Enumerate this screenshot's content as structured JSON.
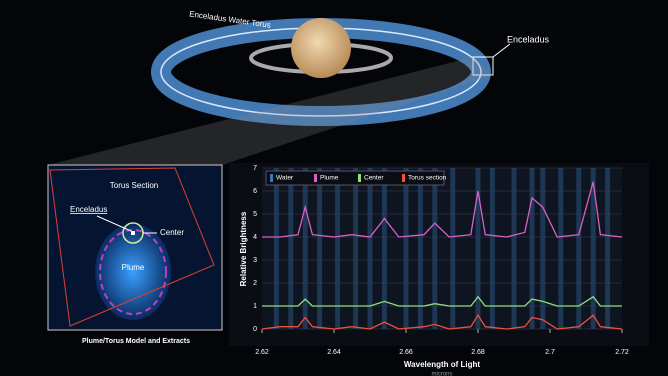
{
  "illustration": {
    "torus_label": "Enceladus Water Torus",
    "moon_label": "Enceladus"
  },
  "inset": {
    "title": "Torus Section",
    "moon_label": "Enceladus",
    "center_label": "Center",
    "plume_label": "Plume",
    "caption": "Plume/Torus Model and Extracts"
  },
  "chart_data": {
    "type": "line",
    "x_label": "Wavelength of Light",
    "x_unit": "microns",
    "y_label": "Relative Brightness",
    "x": [
      2.62,
      2.625,
      2.63,
      2.632,
      2.634,
      2.64,
      2.645,
      2.65,
      2.654,
      2.658,
      2.665,
      2.668,
      2.672,
      2.678,
      2.68,
      2.682,
      2.688,
      2.693,
      2.695,
      2.698,
      2.702,
      2.708,
      2.712,
      2.714,
      2.72
    ],
    "series": [
      {
        "name": "Water",
        "color": "#3a78b8",
        "lines": [
          2.624,
          2.628,
          2.632,
          2.636,
          2.641,
          2.646,
          2.65,
          2.654,
          2.66,
          2.664,
          2.668,
          2.673,
          2.68,
          2.684,
          2.69,
          2.695,
          2.698,
          2.703,
          2.708,
          2.712,
          2.716
        ]
      },
      {
        "name": "Plume",
        "color": "#d860c8",
        "values": [
          4.0,
          4.0,
          4.1,
          5.3,
          4.1,
          4.0,
          4.1,
          4.0,
          4.8,
          4.0,
          4.1,
          4.6,
          4.0,
          4.1,
          6.0,
          4.1,
          4.0,
          4.2,
          5.7,
          5.3,
          4.0,
          4.1,
          6.4,
          4.1,
          4.0
        ]
      },
      {
        "name": "Center",
        "color": "#8ee07a",
        "values": [
          1.0,
          1.0,
          1.0,
          1.3,
          1.0,
          1.0,
          1.0,
          1.0,
          1.2,
          1.0,
          1.0,
          1.1,
          1.0,
          1.0,
          1.4,
          1.0,
          1.0,
          1.0,
          1.3,
          1.2,
          1.0,
          1.0,
          1.4,
          1.0,
          1.0
        ]
      },
      {
        "name": "Torus section",
        "color": "#f0503c",
        "values": [
          0.0,
          0.1,
          0.1,
          0.5,
          0.1,
          0.0,
          0.1,
          0.0,
          0.3,
          0.0,
          0.1,
          0.2,
          0.0,
          0.1,
          0.6,
          0.1,
          0.0,
          0.1,
          0.5,
          0.4,
          0.0,
          0.1,
          0.6,
          0.1,
          0.0
        ]
      }
    ],
    "xlim": [
      2.62,
      2.72
    ],
    "xticks": [
      2.62,
      2.64,
      2.66,
      2.68,
      2.7,
      2.72
    ],
    "ylim": [
      0,
      7
    ],
    "yticks": [
      0,
      1,
      2,
      3,
      4,
      5,
      6,
      7
    ],
    "grid": true
  }
}
